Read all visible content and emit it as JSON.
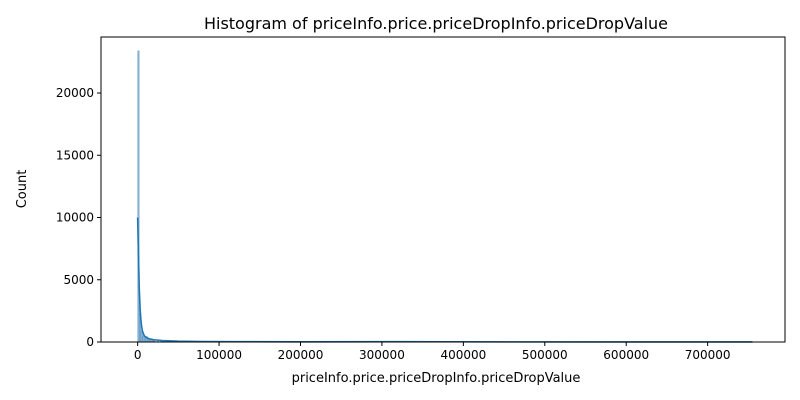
{
  "chart_data": {
    "type": "bar",
    "title": "Histogram of priceInfo.price.priceDropInfo.priceDropValue",
    "xlabel": "priceInfo.price.priceDropInfo.priceDropValue",
    "ylabel": "Count",
    "xlim": [
      -45000,
      795000
    ],
    "ylim": [
      0,
      24500
    ],
    "x_ticks": [
      0,
      100000,
      200000,
      300000,
      400000,
      500000,
      600000,
      700000
    ],
    "x_tick_labels": [
      "0",
      "100000",
      "200000",
      "300000",
      "400000",
      "500000",
      "600000",
      "700000"
    ],
    "y_ticks": [
      0,
      5000,
      10000,
      15000,
      20000
    ],
    "y_tick_labels": [
      "0",
      "5000",
      "10000",
      "15000",
      "20000"
    ],
    "grid": false,
    "bar_color": "#7ba7cc",
    "line_color": "#1f77b4",
    "bin_width": 2000,
    "bins": [
      {
        "x0": 0,
        "x1": 2000,
        "count": 23400
      },
      {
        "x0": 2000,
        "x1": 4000,
        "count": 2300
      },
      {
        "x0": 4000,
        "x1": 6000,
        "count": 900
      },
      {
        "x0": 6000,
        "x1": 8000,
        "count": 500
      },
      {
        "x0": 8000,
        "x1": 10000,
        "count": 350
      },
      {
        "x0": 10000,
        "x1": 12000,
        "count": 450
      },
      {
        "x0": 12000,
        "x1": 14000,
        "count": 280
      },
      {
        "x0": 14000,
        "x1": 16000,
        "count": 200
      },
      {
        "x0": 16000,
        "x1": 18000,
        "count": 160
      },
      {
        "x0": 18000,
        "x1": 20000,
        "count": 180
      },
      {
        "x0": 20000,
        "x1": 22000,
        "count": 140
      },
      {
        "x0": 24000,
        "x1": 26000,
        "count": 110
      },
      {
        "x0": 28000,
        "x1": 30000,
        "count": 90
      },
      {
        "x0": 30000,
        "x1": 32000,
        "count": 70
      },
      {
        "x0": 34000,
        "x1": 36000,
        "count": 50
      },
      {
        "x0": 40000,
        "x1": 42000,
        "count": 40
      },
      {
        "x0": 48000,
        "x1": 50000,
        "count": 60
      },
      {
        "x0": 50000,
        "x1": 52000,
        "count": 30
      },
      {
        "x0": 60000,
        "x1": 62000,
        "count": 20
      },
      {
        "x0": 75000,
        "x1": 77000,
        "count": 15
      },
      {
        "x0": 100000,
        "x1": 102000,
        "count": 20
      },
      {
        "x0": 150000,
        "x1": 152000,
        "count": 10
      },
      {
        "x0": 200000,
        "x1": 202000,
        "count": 8
      },
      {
        "x0": 250000,
        "x1": 252000,
        "count": 5
      },
      {
        "x0": 300000,
        "x1": 302000,
        "count": 6
      },
      {
        "x0": 320000,
        "x1": 322000,
        "count": 60
      },
      {
        "x0": 450000,
        "x1": 452000,
        "count": 5
      },
      {
        "x0": 500000,
        "x1": 502000,
        "count": 5
      },
      {
        "x0": 620000,
        "x1": 622000,
        "count": 4
      },
      {
        "x0": 750000,
        "x1": 752000,
        "count": 6
      }
    ],
    "kde": {
      "x": [
        0,
        1000,
        2000,
        3000,
        4000,
        5000,
        6000,
        8000,
        10000,
        14000,
        20000,
        30000,
        50000,
        80000,
        120000,
        200000,
        320000,
        450000,
        600000,
        755000
      ],
      "y": [
        10000,
        7000,
        4300,
        2700,
        1800,
        1200,
        850,
        520,
        380,
        260,
        180,
        120,
        70,
        40,
        25,
        15,
        30,
        10,
        8,
        5
      ]
    }
  }
}
